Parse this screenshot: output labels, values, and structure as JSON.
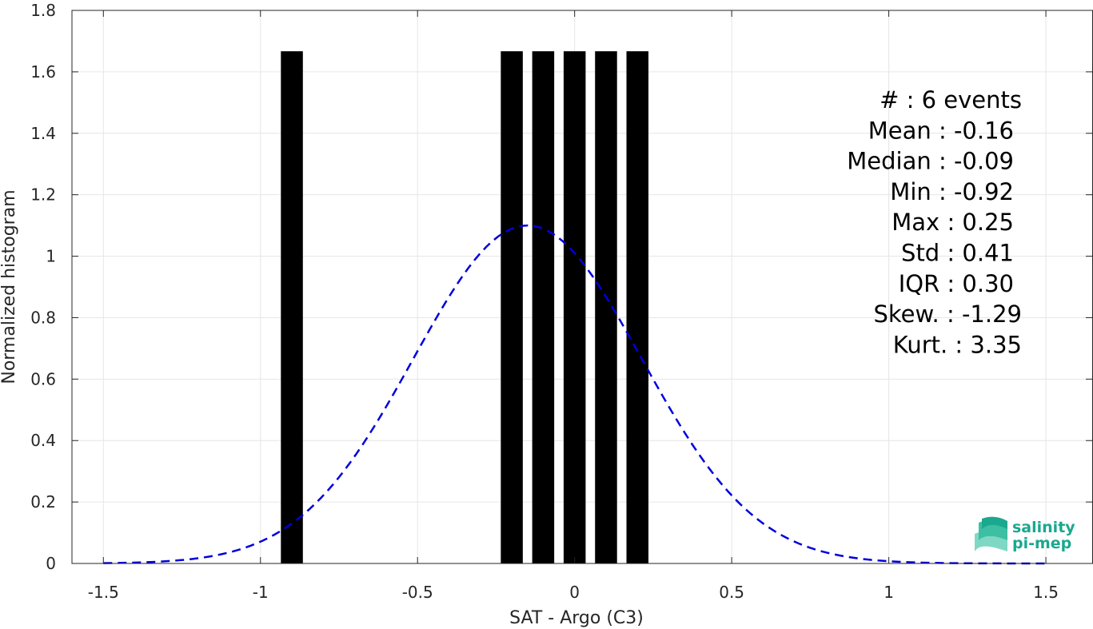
{
  "chart_data": {
    "type": "bar",
    "xlabel": "SAT - Argo (C3)",
    "ylabel": "Normalized histogram",
    "xlim": [
      -1.6,
      1.65
    ],
    "ylim": [
      0,
      1.8
    ],
    "xticks": [
      -1.5,
      -1,
      -0.5,
      0,
      0.5,
      1,
      1.5
    ],
    "xtick_labels": [
      "-1.5",
      "-1",
      "-0.5",
      "0",
      "0.5",
      "1",
      "1.5"
    ],
    "yticks": [
      0,
      0.2,
      0.4,
      0.6,
      0.8,
      1,
      1.2,
      1.4,
      1.6,
      1.8
    ],
    "ytick_labels": [
      "0",
      "0.2",
      "0.4",
      "0.6",
      "0.8",
      "1",
      "1.2",
      "1.4",
      "1.6",
      "1.8"
    ],
    "grid": true,
    "bar_color": "#000000",
    "curve_color": "#0000dd",
    "bars": [
      {
        "x": -0.9,
        "width": 0.07,
        "value": 1.667
      },
      {
        "x": -0.2,
        "width": 0.07,
        "value": 1.667
      },
      {
        "x": -0.1,
        "width": 0.07,
        "value": 1.667
      },
      {
        "x": 0.0,
        "width": 0.07,
        "value": 1.667
      },
      {
        "x": 0.1,
        "width": 0.07,
        "value": 1.667
      },
      {
        "x": 0.2,
        "width": 0.07,
        "value": 1.667
      }
    ],
    "gaussian_fit": {
      "mean": -0.15,
      "std": 0.363,
      "peak": 1.1,
      "x_range": [
        -1.5,
        1.5
      ],
      "style": "dashed"
    },
    "stats_lines": [
      "#  : 6 events",
      "Mean : -0.16",
      "Median : -0.09",
      "Min : -0.92",
      "Max : 0.25",
      "Std : 0.41",
      "IQR : 0.30",
      "Skew. : -1.29",
      "Kurt. : 3.35"
    ]
  },
  "logo": {
    "line1": "salinity",
    "line2": "pi-mep",
    "color": "#1aa88e"
  }
}
